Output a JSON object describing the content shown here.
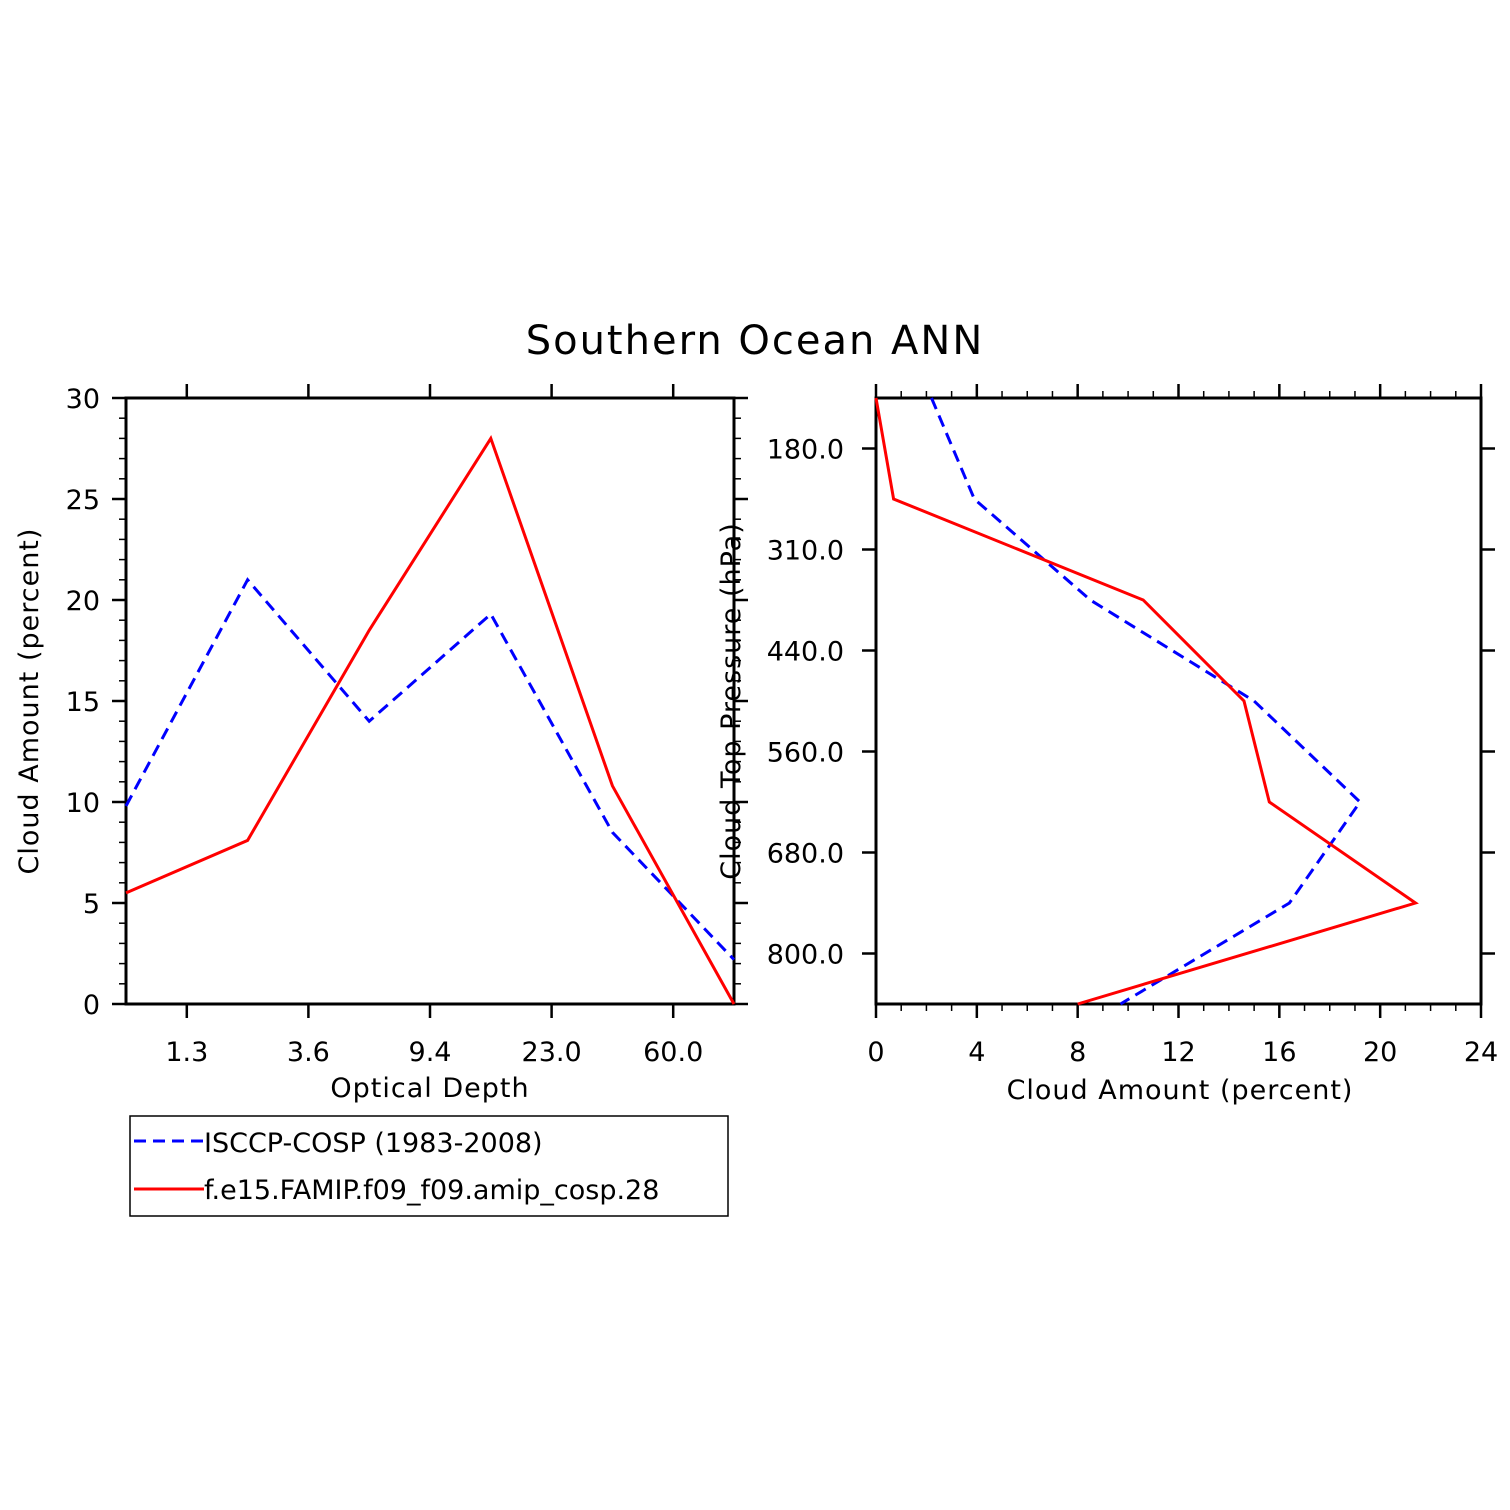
{
  "title": "Southern Ocean ANN",
  "colors": {
    "obs": "#0000ff",
    "model": "#ff0000",
    "axis": "#000000"
  },
  "legend": {
    "entries": [
      {
        "label": "ISCCP-COSP (1983-2008)",
        "color": "#0000ff",
        "dash": true
      },
      {
        "label": "f.e15.FAMIP.f09_f09.amip_cosp.28",
        "color": "#ff0000",
        "dash": false
      }
    ]
  },
  "chart_data": [
    {
      "type": "line",
      "xlabel": "Optical Depth",
      "ylabel": "Cloud Amount (percent)",
      "x_categories": [
        "1.3",
        "3.6",
        "9.4",
        "23.0",
        "60.0"
      ],
      "x_index_range": [
        0,
        5
      ],
      "ylim": [
        0,
        30
      ],
      "yticks": [
        0,
        5,
        10,
        15,
        20,
        25,
        30
      ],
      "series": [
        {
          "name": "ISCCP-COSP (1983-2008)",
          "color": "#0000ff",
          "dash": true,
          "x": [
            0,
            1,
            2,
            3,
            4,
            5
          ],
          "y": [
            9.8,
            21.0,
            14.0,
            19.3,
            8.5,
            2.2
          ]
        },
        {
          "name": "f.e15.FAMIP.f09_f09.amip_cosp.28",
          "color": "#ff0000",
          "dash": false,
          "x": [
            0,
            1,
            2,
            3,
            4,
            5
          ],
          "y": [
            5.5,
            8.1,
            18.5,
            28.0,
            10.8,
            0.0
          ]
        }
      ]
    },
    {
      "type": "line",
      "xlabel": "Cloud Amount (percent)",
      "ylabel": "Cloud Top Pressure (hPa)",
      "xlim": [
        0,
        24
      ],
      "xticks": [
        0,
        4,
        8,
        12,
        16,
        20,
        24
      ],
      "y_categories": [
        "180.0",
        "310.0",
        "440.0",
        "560.0",
        "680.0",
        "800.0"
      ],
      "y_index_range": [
        0,
        6
      ],
      "series": [
        {
          "name": "ISCCP-COSP (1983-2008)",
          "color": "#0000ff",
          "dash": true,
          "x": [
            2.2,
            3.9,
            8.5,
            15.0,
            19.2,
            16.4,
            9.7
          ],
          "y": [
            0,
            1,
            2,
            3,
            4,
            5,
            6
          ]
        },
        {
          "name": "f.e15.FAMIP.f09_f09.amip_cosp.28",
          "color": "#ff0000",
          "dash": false,
          "x": [
            0.0,
            0.7,
            10.6,
            14.6,
            15.6,
            21.4,
            8.0
          ],
          "y": [
            0,
            1,
            2,
            3,
            4,
            5,
            6
          ]
        }
      ]
    }
  ]
}
